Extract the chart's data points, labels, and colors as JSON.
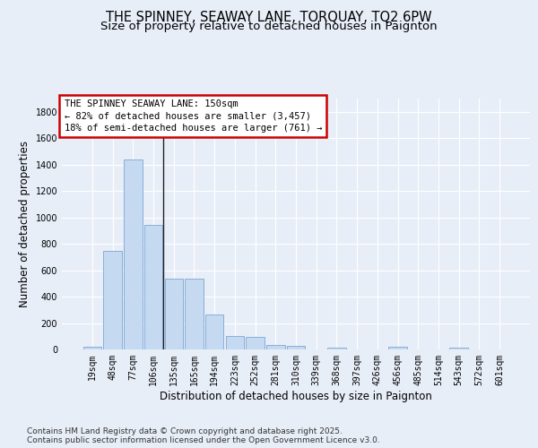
{
  "title_line1": "THE SPINNEY, SEAWAY LANE, TORQUAY, TQ2 6PW",
  "title_line2": "Size of property relative to detached houses in Paignton",
  "xlabel": "Distribution of detached houses by size in Paignton",
  "ylabel": "Number of detached properties",
  "categories": [
    "19sqm",
    "48sqm",
    "77sqm",
    "106sqm",
    "135sqm",
    "165sqm",
    "194sqm",
    "223sqm",
    "252sqm",
    "281sqm",
    "310sqm",
    "339sqm",
    "368sqm",
    "397sqm",
    "426sqm",
    "456sqm",
    "485sqm",
    "514sqm",
    "543sqm",
    "572sqm",
    "601sqm"
  ],
  "values": [
    22,
    748,
    1437,
    945,
    537,
    537,
    268,
    105,
    95,
    35,
    25,
    0,
    15,
    0,
    0,
    18,
    0,
    0,
    12,
    0,
    0
  ],
  "bar_color": "#c5d9f1",
  "bar_edge_color": "#7ba7d4",
  "annotation_box_text": "THE SPINNEY SEAWAY LANE: 150sqm\n← 82% of detached houses are smaller (3,457)\n18% of semi-detached houses are larger (761) →",
  "annotation_box_color": "#cc0000",
  "annotation_box_bg": "white",
  "ylim": [
    0,
    1900
  ],
  "yticks": [
    0,
    200,
    400,
    600,
    800,
    1000,
    1200,
    1400,
    1600,
    1800
  ],
  "vline_x": 3.5,
  "footer_line1": "Contains HM Land Registry data © Crown copyright and database right 2025.",
  "footer_line2": "Contains public sector information licensed under the Open Government Licence v3.0.",
  "bg_color": "#e8eef8",
  "plot_bg_color": "#e8eef8",
  "grid_color": "#ffffff",
  "title_fontsize": 10.5,
  "subtitle_fontsize": 9.5,
  "axis_label_fontsize": 8.5,
  "tick_fontsize": 7,
  "footer_fontsize": 6.5,
  "ann_fontsize": 7.5
}
